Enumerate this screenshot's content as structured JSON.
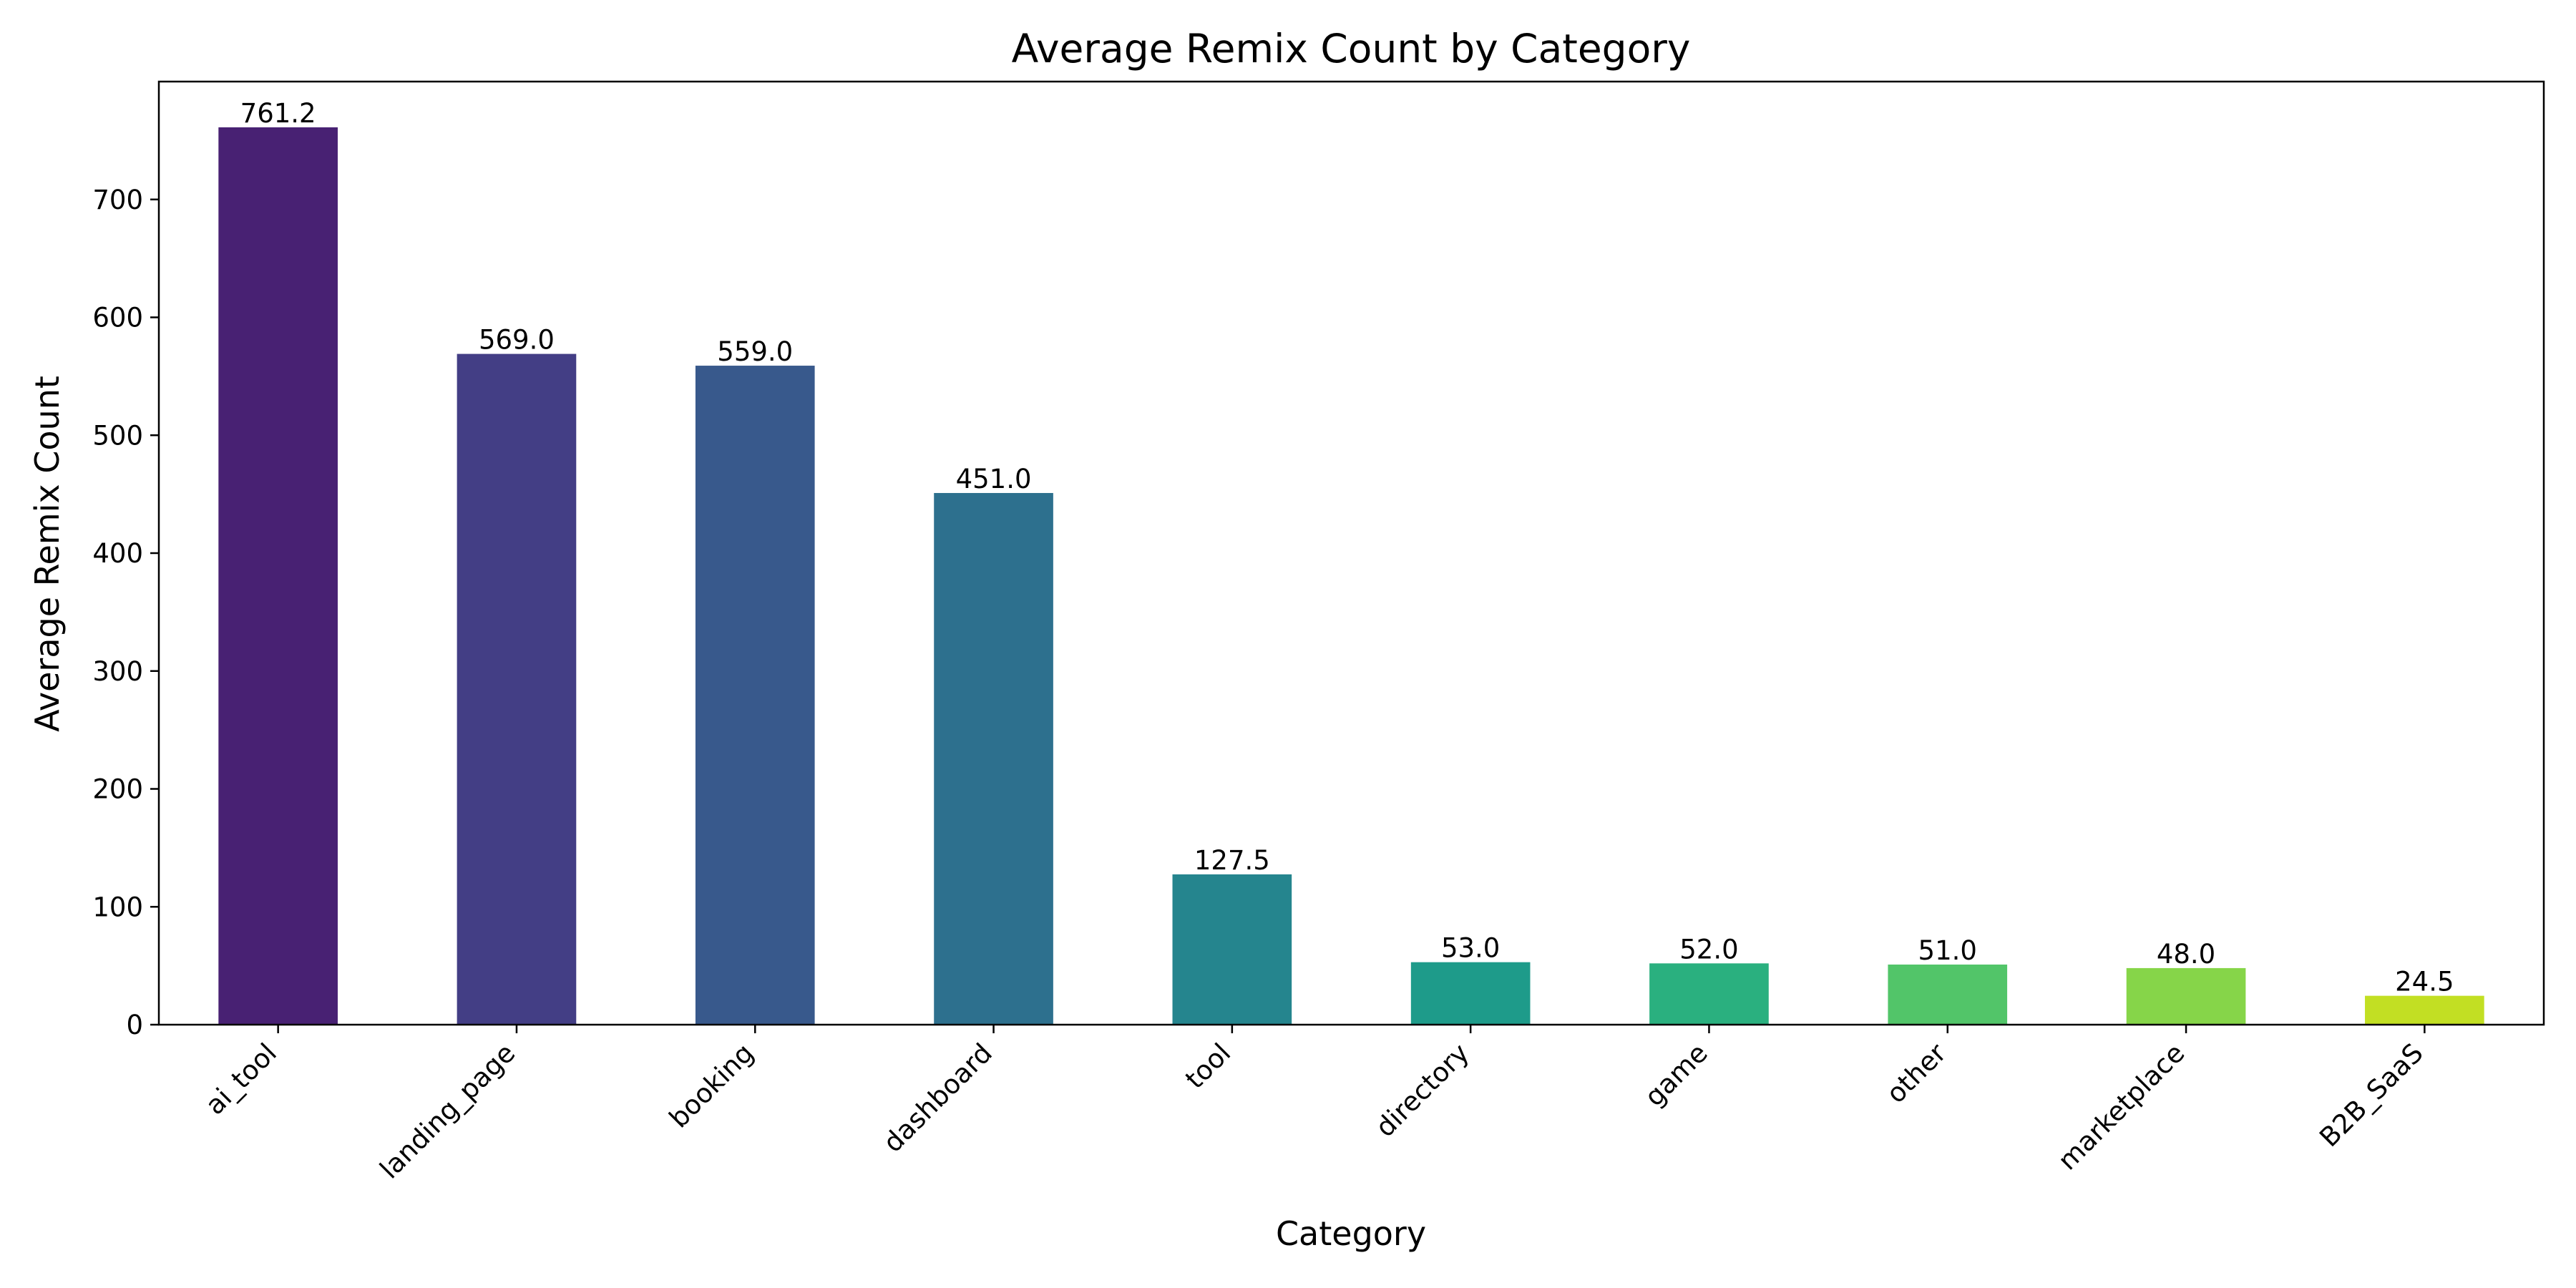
{
  "chart_data": {
    "type": "bar",
    "title": "Average Remix Count by Category",
    "xlabel": "Category",
    "ylabel": "Average Remix Count",
    "categories": [
      "ai_tool",
      "landing_page",
      "booking",
      "dashboard",
      "tool",
      "directory",
      "game",
      "other",
      "marketplace",
      "B2B_SaaS"
    ],
    "values": [
      761.2,
      569.0,
      559.0,
      451.0,
      127.5,
      53.0,
      52.0,
      51.0,
      48.0,
      24.5
    ],
    "value_labels": [
      "761.2",
      "569.0",
      "559.0",
      "451.0",
      "127.5",
      "53.0",
      "52.0",
      "51.0",
      "48.0",
      "24.5"
    ],
    "colors": [
      "#482173",
      "#433e85",
      "#38598c",
      "#2d708e",
      "#25858e",
      "#1e9b8a",
      "#2ab07f",
      "#52c569",
      "#86d549",
      "#c2df23"
    ],
    "ylim": [
      0,
      800
    ],
    "yticks": [
      0,
      100,
      200,
      300,
      400,
      500,
      600,
      700
    ],
    "ytick_labels": [
      "0",
      "100",
      "200",
      "300",
      "400",
      "500",
      "600",
      "700"
    ],
    "grid": false,
    "legend": "none"
  }
}
